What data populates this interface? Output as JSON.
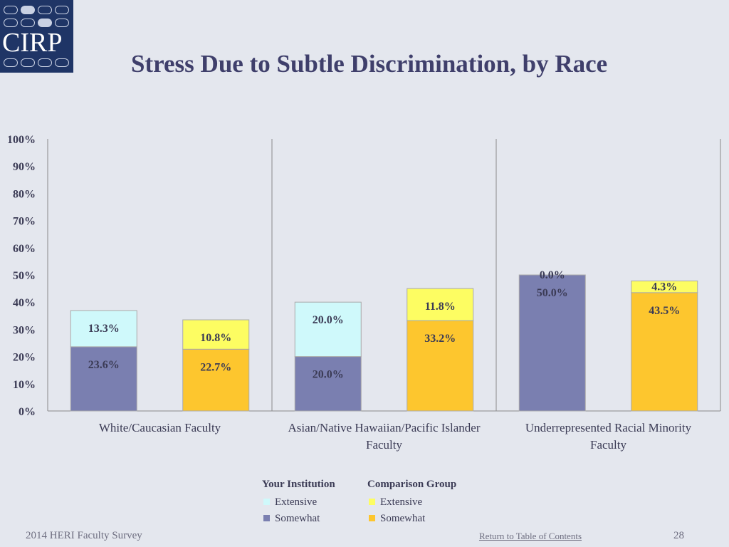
{
  "logo": {
    "text": "CIRP"
  },
  "title": "Stress Due to Subtle Discrimination, by Race",
  "chart_data": {
    "type": "bar",
    "stacked": true,
    "ylim": [
      0,
      100
    ],
    "yticks": [
      "0%",
      "10%",
      "20%",
      "30%",
      "40%",
      "50%",
      "60%",
      "70%",
      "80%",
      "90%",
      "100%"
    ],
    "categories": [
      [
        "White/Caucasian Faculty"
      ],
      [
        "Asian/Native Hawaiian/Pacific Islander",
        "Faculty"
      ],
      [
        "Underrepresented Racial Minority",
        "Faculty"
      ]
    ],
    "groups": [
      {
        "name": "Your Institution",
        "series": [
          {
            "name": "Somewhat",
            "color": "#7a7fb0",
            "values": [
              23.6,
              20.0,
              50.0
            ],
            "labels": [
              "23.6%",
              "20.0%",
              "50.0%"
            ]
          },
          {
            "name": "Extensive",
            "color": "#cff9fb",
            "values": [
              13.3,
              20.0,
              0.0
            ],
            "labels": [
              "13.3%",
              "20.0%",
              "0.0%"
            ]
          }
        ]
      },
      {
        "name": "Comparison Group",
        "series": [
          {
            "name": "Somewhat",
            "color": "#fdc62e",
            "values": [
              22.7,
              33.2,
              43.5
            ],
            "labels": [
              "22.7%",
              "33.2%",
              "43.5%"
            ]
          },
          {
            "name": "Extensive",
            "color": "#fdfd62",
            "values": [
              10.8,
              11.8,
              4.3
            ],
            "labels": [
              "10.8%",
              "11.8%",
              "4.3%"
            ]
          }
        ]
      }
    ]
  },
  "legend": {
    "your_institution": {
      "title": "Your Institution",
      "extensive": "Extensive",
      "somewhat": "Somewhat",
      "extensive_color": "#cff9fb",
      "somewhat_color": "#7a7fb0"
    },
    "comparison_group": {
      "title": "Comparison Group",
      "extensive": "Extensive",
      "somewhat": "Somewhat",
      "extensive_color": "#fdfd62",
      "somewhat_color": "#fdc62e"
    }
  },
  "footer": {
    "survey": "2014 HERI Faculty Survey",
    "link": "Return to Table of Contents",
    "page": "28"
  }
}
